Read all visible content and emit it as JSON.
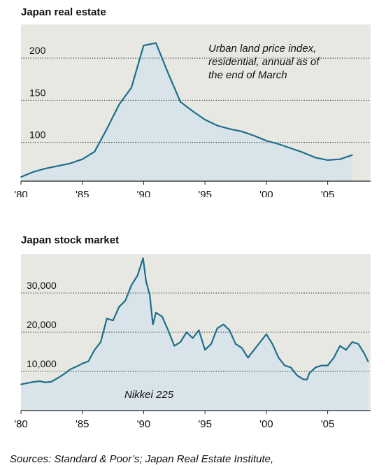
{
  "chart_data": [
    {
      "type": "area",
      "title": "Japan real estate",
      "annotation": [
        "Urban land price index,",
        "residential, annual as of",
        "the end of March"
      ],
      "x_tick_labels": [
        "'80",
        "'85",
        "'90",
        "'95",
        "'00",
        "'05"
      ],
      "x_tick_values": [
        1980,
        1985,
        1990,
        1995,
        2000,
        2005
      ],
      "y_tick_labels": [
        "100",
        "150",
        "200"
      ],
      "y_tick_values": [
        100,
        150,
        200
      ],
      "xlim": [
        1980,
        2008.5
      ],
      "ylim": [
        54,
        240
      ],
      "grid": "dotted horizontal lines",
      "colors": {
        "line": "#1f6e8c",
        "fill": "#d8e3ea",
        "plot_bg": "#e8e8e2"
      },
      "x": [
        1980,
        1981,
        1982,
        1983,
        1984,
        1985,
        1986,
        1987,
        1988,
        1989,
        1990,
        1991,
        1992,
        1993,
        1994,
        1995,
        1996,
        1997,
        1998,
        1999,
        2000,
        2001,
        2002,
        2003,
        2004,
        2005,
        2006,
        2007
      ],
      "values": [
        59,
        65,
        69,
        72,
        75,
        80,
        89,
        116,
        145,
        165,
        215,
        218,
        182,
        148,
        137,
        127,
        120,
        116,
        113,
        108,
        102,
        98,
        93,
        88,
        82,
        79,
        80,
        85
      ]
    },
    {
      "type": "area",
      "title": "Japan stock market",
      "annotation": [
        "Nikkei 225"
      ],
      "x_tick_labels": [
        "'80",
        "'85",
        "'90",
        "'95",
        "'00",
        "'05"
      ],
      "x_tick_values": [
        1980,
        1985,
        1990,
        1995,
        2000,
        2005
      ],
      "y_tick_labels": [
        "10,000",
        "20,000",
        "30,000"
      ],
      "y_tick_values": [
        10000,
        20000,
        30000
      ],
      "xlim": [
        1980,
        2008.5
      ],
      "ylim": [
        0,
        40000
      ],
      "grid": "dotted horizontal lines",
      "colors": {
        "line": "#1f6e8c",
        "fill": "#d8e3ea",
        "plot_bg": "#e8e8e2"
      },
      "x": [
        1980,
        1980.5,
        1981,
        1981.5,
        1982,
        1982.5,
        1983,
        1983.5,
        1984,
        1984.5,
        1985,
        1985.5,
        1986,
        1986.5,
        1987,
        1987.5,
        1988,
        1988.5,
        1989,
        1989.5,
        1989.95,
        1990.2,
        1990.5,
        1990.75,
        1991,
        1991.5,
        1992,
        1992.5,
        1993,
        1993.5,
        1994,
        1994.5,
        1995,
        1995.5,
        1996,
        1996.5,
        1997,
        1997.5,
        1998,
        1998.5,
        1999,
        1999.5,
        2000,
        2000.5,
        2001,
        2001.5,
        2002,
        2002.5,
        2003,
        2003.3,
        2003.5,
        2004,
        2004.5,
        2005,
        2005.5,
        2006,
        2006.5,
        2007,
        2007.5,
        2008,
        2008.3
      ],
      "values": [
        6700,
        7000,
        7300,
        7500,
        7200,
        7400,
        8300,
        9300,
        10500,
        11200,
        12000,
        12600,
        15500,
        17500,
        23500,
        23000,
        26500,
        28000,
        32000,
        34500,
        38900,
        33000,
        29500,
        22000,
        25000,
        24000,
        20500,
        16500,
        17500,
        20000,
        18500,
        20500,
        15500,
        17000,
        21000,
        22000,
        20500,
        17000,
        16000,
        13500,
        15500,
        17500,
        19500,
        17000,
        13500,
        11500,
        11000,
        9000,
        8000,
        7900,
        9500,
        11000,
        11500,
        11500,
        13500,
        16500,
        15500,
        17500,
        17000,
        14500,
        12500
      ]
    }
  ],
  "source": "Sources: Standard & Poor’s; Japan Real Estate Institute,"
}
